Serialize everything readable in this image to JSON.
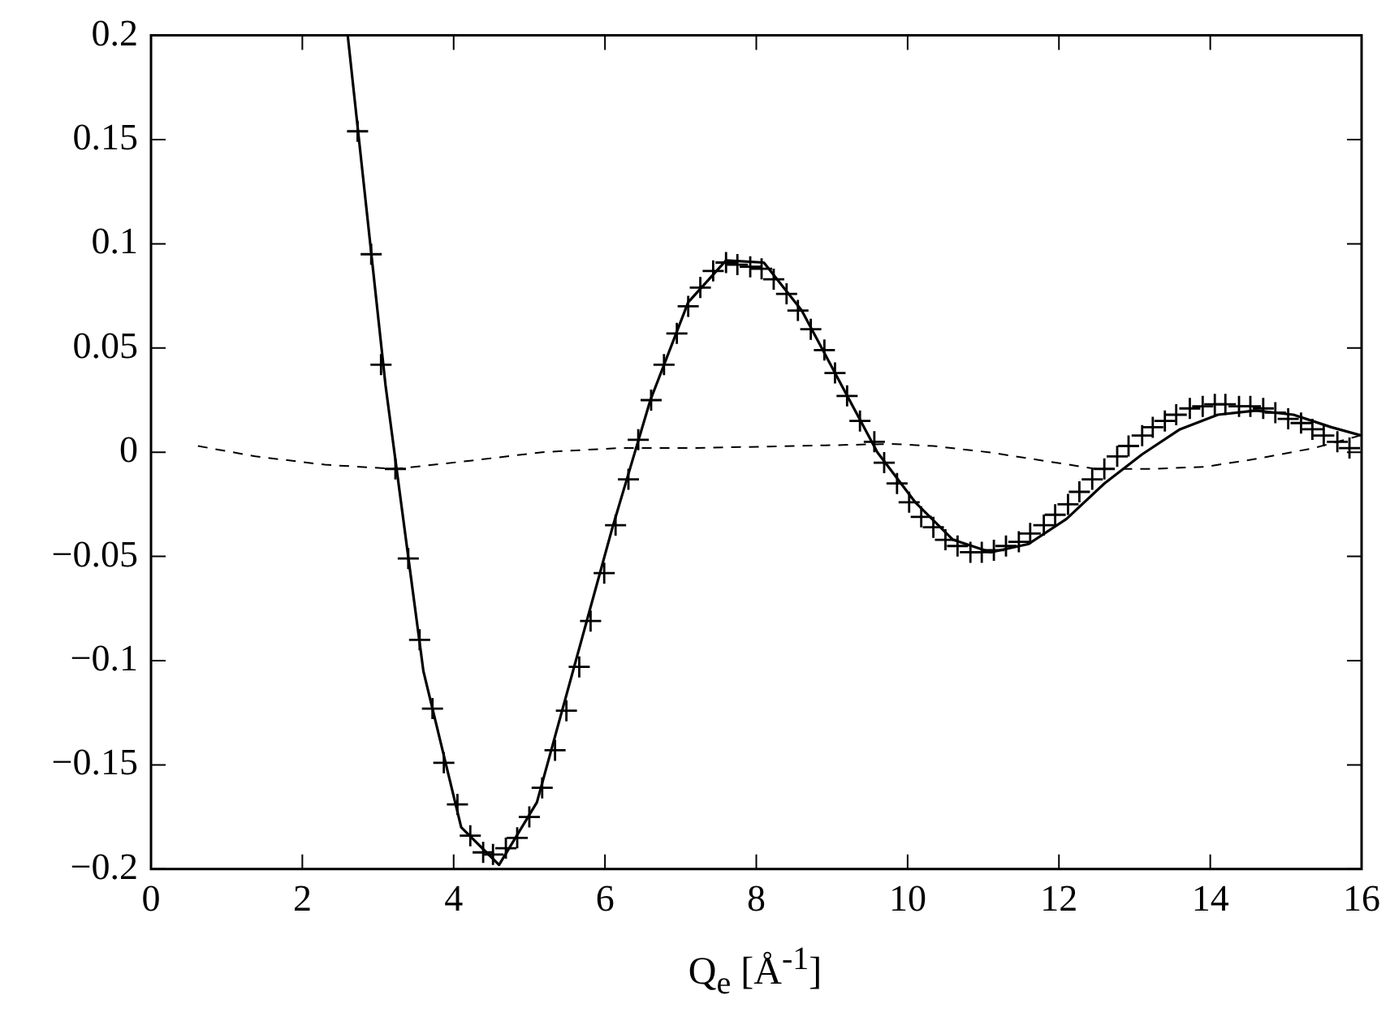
{
  "chart_data": {
    "type": "line",
    "xlabel": "Q$_{e}$ [Å$^{-1}$]",
    "xlim": [
      0,
      16
    ],
    "xticks": [
      0,
      2,
      4,
      6,
      8,
      10,
      12,
      14,
      16
    ],
    "ylim": [
      -0.2,
      0.2
    ],
    "yticks": [
      {
        "value": -0.2,
        "label": "−0.2"
      },
      {
        "value": -0.15,
        "label": "−0.15"
      },
      {
        "value": -0.1,
        "label": "−0.1"
      },
      {
        "value": -0.05,
        "label": "−0.05"
      },
      0,
      0.05,
      0.1,
      0.15,
      0.2
    ],
    "grid": false,
    "legend": false,
    "series": [
      {
        "type": "line",
        "color": "#000000",
        "line_style": "solid",
        "marker": "none",
        "x": [
          2.6,
          3.1,
          3.6,
          4.1,
          4.6,
          5.1,
          5.6,
          6.1,
          6.6,
          7.1,
          7.6,
          8.1,
          8.6,
          9.1,
          9.6,
          10.1,
          10.6,
          11.1,
          11.6,
          12.1,
          12.6,
          13.1,
          13.6,
          14.1,
          14.6,
          15.1,
          15.6,
          16.0
        ],
        "values": [
          0.2,
          0.032,
          -0.105,
          -0.18,
          -0.198,
          -0.168,
          -0.102,
          -0.036,
          0.025,
          0.072,
          0.092,
          0.091,
          0.068,
          0.034,
          0.0,
          -0.024,
          -0.042,
          -0.048,
          -0.044,
          -0.032,
          -0.015,
          -0.001,
          0.011,
          0.018,
          0.02,
          0.018,
          0.012,
          0.008
        ]
      },
      {
        "type": "scatter",
        "color": "#000000",
        "marker": "cross",
        "x": [
          2.73,
          2.91,
          3.04,
          3.23,
          3.4,
          3.55,
          3.72,
          3.87,
          4.05,
          4.22,
          4.39,
          4.52,
          4.69,
          4.84,
          5.0,
          5.17,
          5.34,
          5.49,
          5.66,
          5.81,
          5.99,
          6.14,
          6.31,
          6.44,
          6.61,
          6.78,
          6.95,
          7.1,
          7.26,
          7.43,
          7.6,
          7.75,
          7.92,
          8.07,
          8.23,
          8.4,
          8.55,
          8.72,
          8.9,
          9.04,
          9.2,
          9.37,
          9.56,
          9.69,
          9.86,
          10.02,
          10.18,
          10.34,
          10.5,
          10.66,
          10.83,
          10.98,
          11.14,
          11.3,
          11.47,
          11.62,
          11.8,
          11.95,
          12.12,
          12.27,
          12.44,
          12.6,
          12.77,
          12.92,
          13.1,
          13.24,
          13.4,
          13.55,
          13.73,
          13.9,
          14.06,
          14.2,
          14.38,
          14.53,
          14.7,
          14.86,
          15.03,
          15.2,
          15.35,
          15.5,
          15.68,
          15.84
        ],
        "values": [
          0.154,
          0.095,
          0.042,
          -0.008,
          -0.051,
          -0.09,
          -0.123,
          -0.149,
          -0.169,
          -0.184,
          -0.192,
          -0.193,
          -0.19,
          -0.185,
          -0.175,
          -0.161,
          -0.143,
          -0.124,
          -0.103,
          -0.081,
          -0.058,
          -0.035,
          -0.013,
          0.006,
          0.025,
          0.042,
          0.057,
          0.07,
          0.079,
          0.087,
          0.091,
          0.09,
          0.089,
          0.088,
          0.083,
          0.076,
          0.068,
          0.059,
          0.049,
          0.038,
          0.027,
          0.015,
          0.005,
          -0.005,
          -0.015,
          -0.024,
          -0.031,
          -0.036,
          -0.042,
          -0.045,
          -0.048,
          -0.048,
          -0.047,
          -0.045,
          -0.043,
          -0.039,
          -0.035,
          -0.03,
          -0.025,
          -0.019,
          -0.013,
          -0.008,
          -0.002,
          0.003,
          0.008,
          0.012,
          0.015,
          0.018,
          0.021,
          0.022,
          0.023,
          0.023,
          0.022,
          0.022,
          0.021,
          0.019,
          0.016,
          0.014,
          0.011,
          0.008,
          0.005,
          0.002
        ]
      },
      {
        "type": "line",
        "color": "#000000",
        "line_style": "dashed",
        "marker": "none",
        "x": [
          0.62,
          1.38,
          2.3,
          3.23,
          4.24,
          5.17,
          6.18,
          7.1,
          8.55,
          9.78,
          10.34,
          11.07,
          11.78,
          12.49,
          13.22,
          13.93,
          14.64,
          15.37,
          15.98
        ],
        "values": [
          0.003,
          -0.002,
          -0.006,
          -0.008,
          -0.004,
          0.0,
          0.002,
          0.002,
          0.003,
          0.004,
          0.003,
          0.0,
          -0.004,
          -0.008,
          -0.008,
          -0.007,
          -0.003,
          0.002,
          0.008
        ]
      }
    ]
  }
}
